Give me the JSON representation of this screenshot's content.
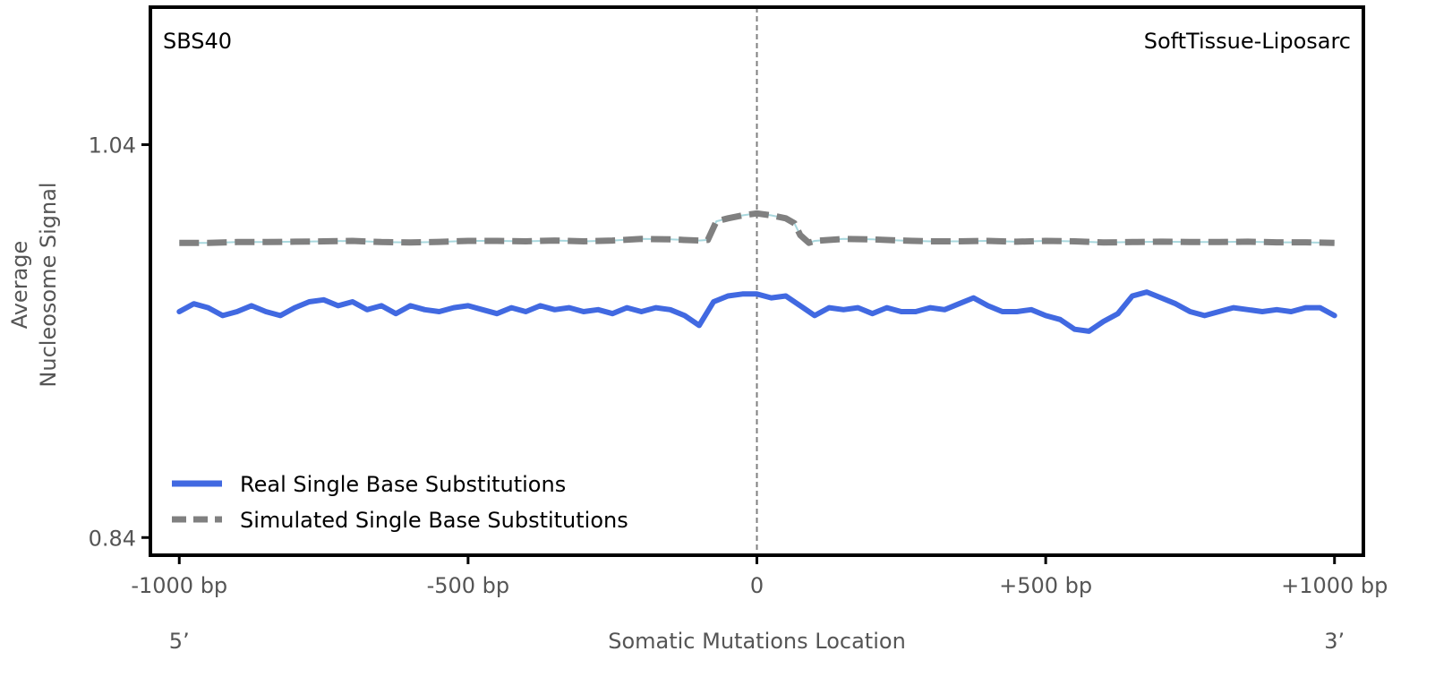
{
  "chart_data": {
    "type": "line",
    "signature": "SBS40",
    "tissue": "SoftTissue-Liposarc",
    "xlabel": "Somatic Mutations Location",
    "ylabel_line1": "Average",
    "ylabel_line2": "Nucleosome Signal",
    "x_ticks": [
      -1000,
      -500,
      0,
      500,
      1000
    ],
    "x_tick_labels": [
      "-1000 bp",
      "-500 bp",
      "0",
      "+500 bp",
      "+1000 bp"
    ],
    "y_ticks": [
      1.04,
      0.84
    ],
    "y_tick_labels": [
      "1.04",
      "0.84"
    ],
    "xlim": [
      -1050,
      1050
    ],
    "ylim": [
      0.831,
      1.11
    ],
    "end_left_label": "5’",
    "end_right_label": "3’",
    "center_line": 0,
    "legend_position": "lower-left",
    "series": [
      {
        "name": "Real Single Base Substitutions",
        "color": "#4169E1",
        "style": "solid",
        "x": [
          -1000,
          -975,
          -950,
          -925,
          -900,
          -875,
          -850,
          -825,
          -800,
          -775,
          -750,
          -725,
          -700,
          -675,
          -650,
          -625,
          -600,
          -575,
          -550,
          -525,
          -500,
          -475,
          -450,
          -425,
          -400,
          -375,
          -350,
          -325,
          -300,
          -275,
          -250,
          -225,
          -200,
          -175,
          -150,
          -125,
          -100,
          -75,
          -50,
          -25,
          0,
          25,
          50,
          75,
          100,
          125,
          150,
          175,
          200,
          225,
          250,
          275,
          300,
          325,
          350,
          375,
          400,
          425,
          450,
          475,
          500,
          525,
          550,
          575,
          600,
          625,
          650,
          675,
          700,
          725,
          750,
          775,
          800,
          825,
          850,
          875,
          900,
          925,
          950,
          975,
          1000
        ],
        "y": [
          0.955,
          0.959,
          0.957,
          0.953,
          0.955,
          0.958,
          0.955,
          0.953,
          0.957,
          0.96,
          0.961,
          0.958,
          0.96,
          0.956,
          0.958,
          0.954,
          0.958,
          0.956,
          0.955,
          0.957,
          0.958,
          0.956,
          0.954,
          0.957,
          0.955,
          0.958,
          0.956,
          0.957,
          0.955,
          0.956,
          0.954,
          0.957,
          0.955,
          0.957,
          0.956,
          0.953,
          0.948,
          0.96,
          0.963,
          0.964,
          0.964,
          0.962,
          0.963,
          0.958,
          0.953,
          0.957,
          0.956,
          0.957,
          0.954,
          0.957,
          0.955,
          0.955,
          0.957,
          0.956,
          0.959,
          0.962,
          0.958,
          0.955,
          0.955,
          0.956,
          0.953,
          0.951,
          0.946,
          0.945,
          0.95,
          0.954,
          0.963,
          0.965,
          0.962,
          0.959,
          0.955,
          0.953,
          0.955,
          0.957,
          0.956,
          0.955,
          0.956,
          0.955,
          0.957,
          0.957,
          0.953
        ]
      },
      {
        "name": "Simulated Single Base Substitutions",
        "color": "#808080",
        "style": "dashed",
        "x": [
          -1000,
          -950,
          -900,
          -850,
          -800,
          -750,
          -700,
          -650,
          -600,
          -550,
          -500,
          -450,
          -400,
          -350,
          -300,
          -250,
          -200,
          -150,
          -100,
          -85,
          -70,
          -50,
          -25,
          0,
          25,
          50,
          65,
          75,
          90,
          100,
          150,
          200,
          250,
          300,
          350,
          400,
          450,
          500,
          550,
          600,
          650,
          700,
          750,
          800,
          850,
          900,
          950,
          1000
        ],
        "y": [
          0.99,
          0.99,
          0.9904,
          0.9904,
          0.9906,
          0.9908,
          0.991,
          0.9904,
          0.9902,
          0.9905,
          0.991,
          0.991,
          0.9908,
          0.9912,
          0.9908,
          0.9912,
          0.992,
          0.9918,
          0.9912,
          0.9915,
          1.001,
          1.0025,
          1.004,
          1.005,
          1.004,
          1.0025,
          1.0,
          0.994,
          0.99,
          0.991,
          0.992,
          0.9918,
          0.9912,
          0.9908,
          0.9908,
          0.991,
          0.9906,
          0.991,
          0.9908,
          0.9902,
          0.9904,
          0.9906,
          0.9904,
          0.9904,
          0.9906,
          0.9903,
          0.9903,
          0.99
        ]
      }
    ]
  }
}
